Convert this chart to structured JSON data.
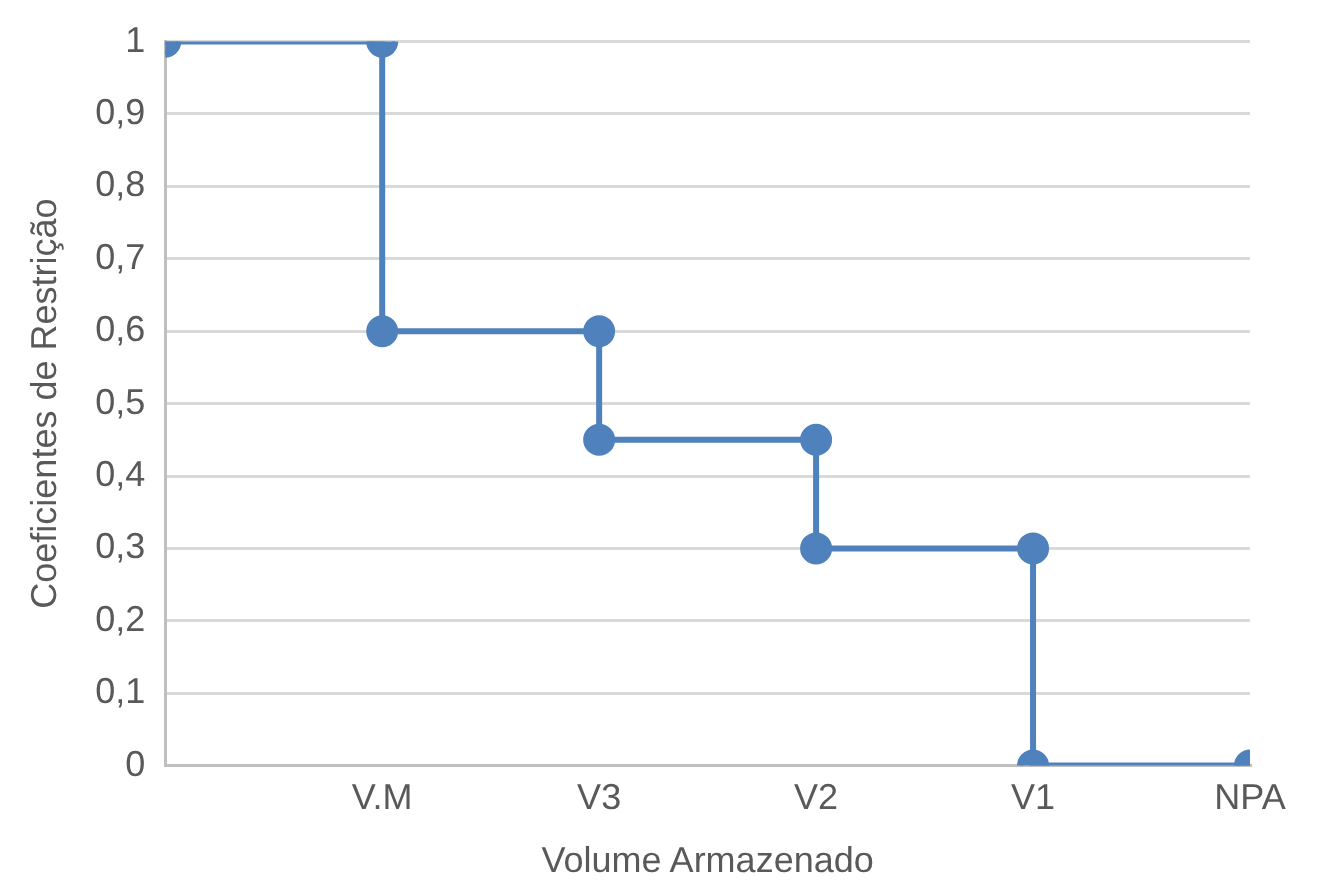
{
  "chart_data": {
    "type": "step",
    "xlabel": "Volume Armazenado",
    "ylabel": "Coeficientes de Restrição",
    "categories": [
      null,
      "V.M",
      "V3",
      "V2",
      "V1",
      "NPA"
    ],
    "series": [
      {
        "color": "#4f81bd",
        "values": [
          1,
          0.6,
          0.45,
          0.3,
          0,
          0
        ]
      },
      {
        "type": "scatter",
        "color": "#4f81bd",
        "x": [
          "V.M",
          "V3",
          "V2",
          "V1"
        ],
        "values": [
          1,
          0.6,
          0.45,
          0.3
        ]
      }
    ],
    "ylim": [
      0,
      1
    ],
    "yticks": [
      {
        "value": 0,
        "label": "0"
      },
      {
        "value": 0.1,
        "label": "0,1"
      },
      {
        "value": 0.2,
        "label": "0,2"
      },
      {
        "value": 0.3,
        "label": "0,3"
      },
      {
        "value": 0.4,
        "label": "0,4"
      },
      {
        "value": 0.5,
        "label": "0,5"
      },
      {
        "value": 0.6,
        "label": "0,6"
      },
      {
        "value": 0.7,
        "label": "0,7"
      },
      {
        "value": 0.8,
        "label": "0,8"
      },
      {
        "value": 0.9,
        "label": "0,9"
      },
      {
        "value": 1,
        "label": "1"
      }
    ],
    "grid": "y",
    "marker": "circle",
    "line_style": "solid",
    "legend": false
  }
}
